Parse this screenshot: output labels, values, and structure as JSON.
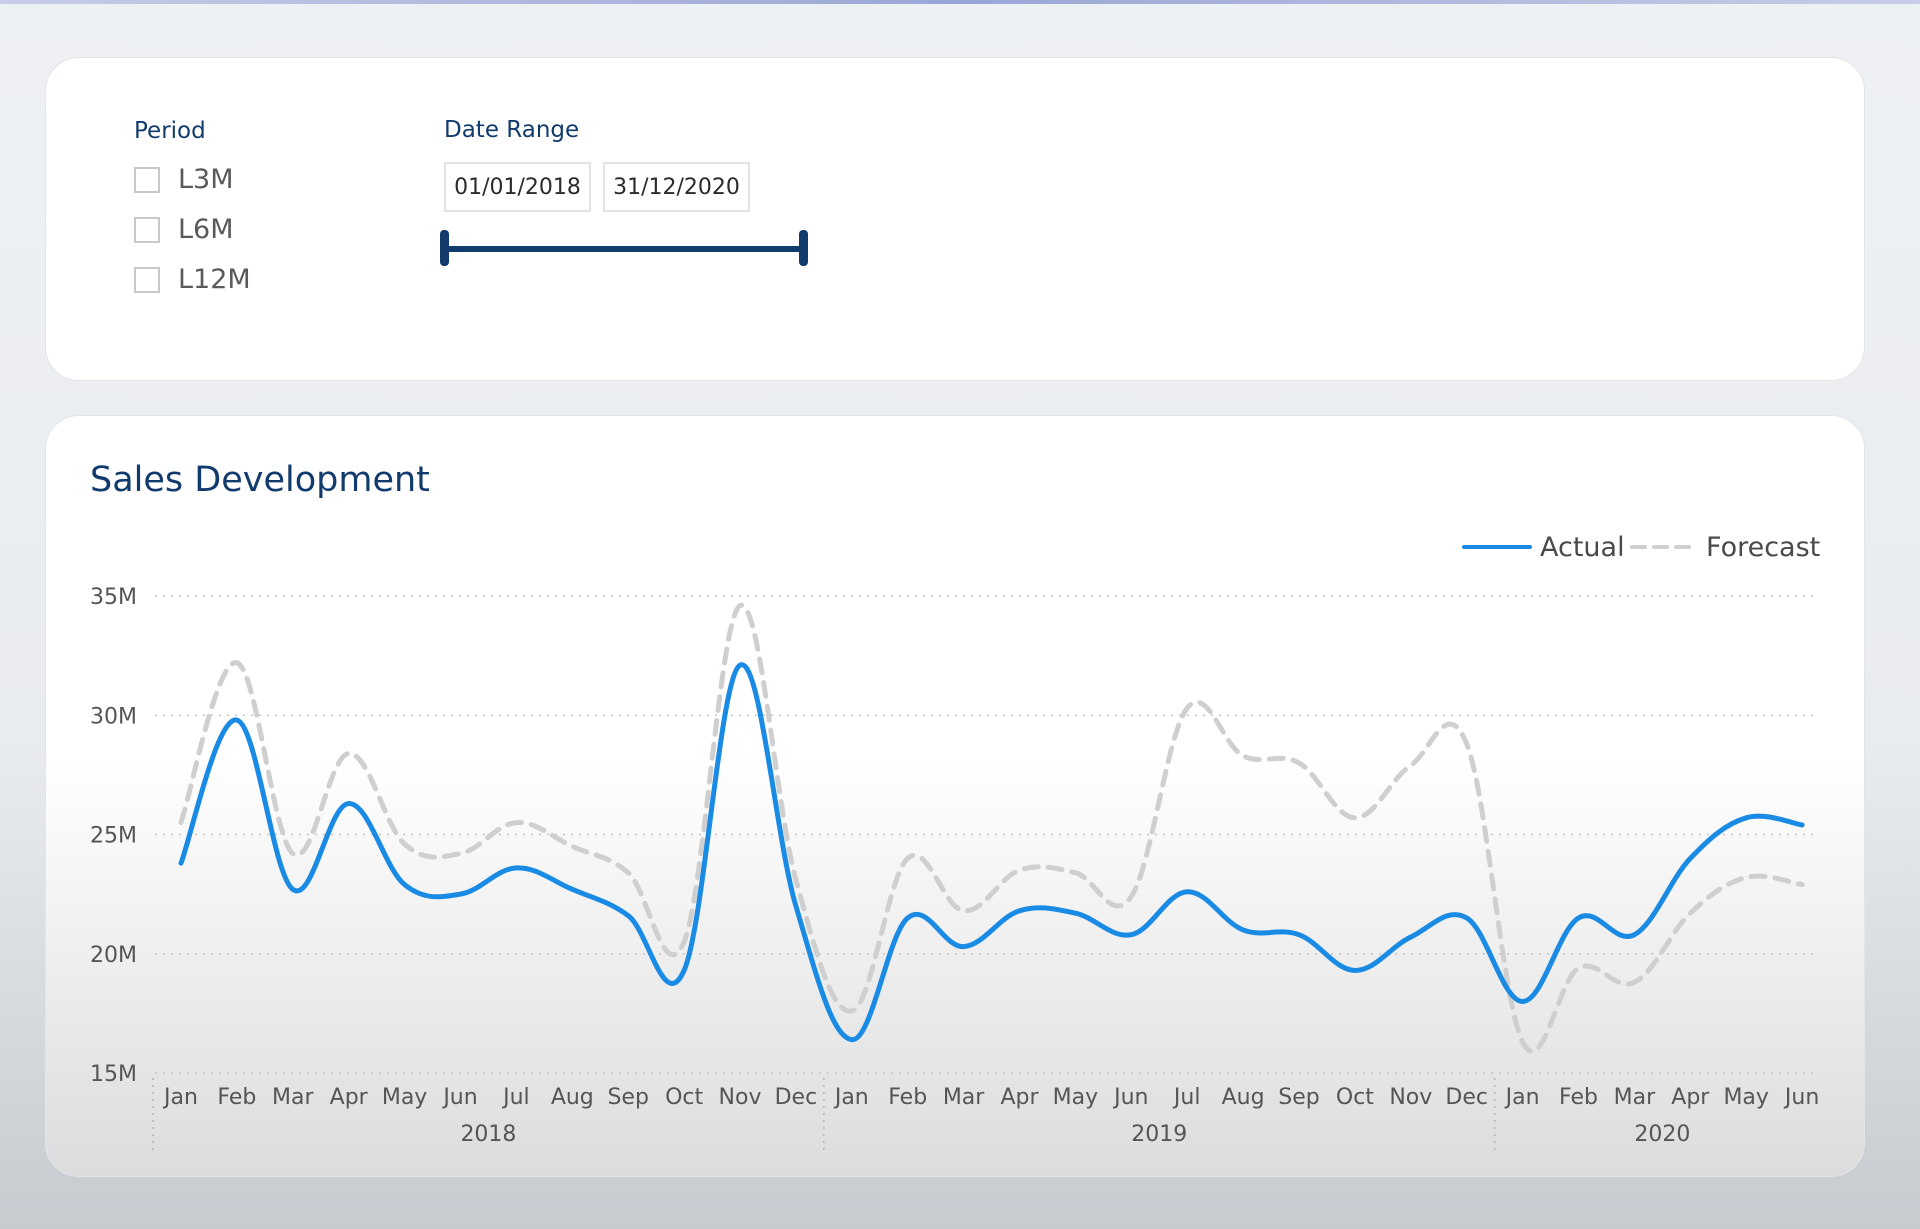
{
  "filters": {
    "period": {
      "title": "Period",
      "options": [
        {
          "label": "L3M",
          "checked": false
        },
        {
          "label": "L6M",
          "checked": false
        },
        {
          "label": "L12M",
          "checked": false
        }
      ]
    },
    "date_range": {
      "title": "Date Range",
      "start": "01/01/2018",
      "end": "31/12/2020"
    }
  },
  "colors": {
    "actual": "#1a8be5",
    "forecast": "#cfcfcf",
    "title": "#123b6d"
  },
  "chart_data": {
    "type": "line",
    "title": "Sales Development",
    "xlabel": "",
    "ylabel": "",
    "ylim": [
      15000000,
      35000000
    ],
    "yticks": [
      15000000,
      20000000,
      25000000,
      30000000,
      35000000
    ],
    "ytick_labels": [
      "15M",
      "20M",
      "25M",
      "30M",
      "35M"
    ],
    "grid": true,
    "legend_position": "top-right",
    "categories": [
      "Jan",
      "Feb",
      "Mar",
      "Apr",
      "May",
      "Jun",
      "Jul",
      "Aug",
      "Sep",
      "Oct",
      "Nov",
      "Dec",
      "Jan",
      "Feb",
      "Mar",
      "Apr",
      "May",
      "Jun",
      "Jul",
      "Aug",
      "Sep",
      "Oct",
      "Nov",
      "Dec",
      "Jan",
      "Feb",
      "Mar",
      "Apr",
      "May",
      "Jun"
    ],
    "years": [
      {
        "label": "2018",
        "months": 12
      },
      {
        "label": "2019",
        "months": 12
      },
      {
        "label": "2020",
        "months": 6
      }
    ],
    "series": [
      {
        "name": "Actual",
        "style": "solid",
        "values": [
          23800000,
          29800000,
          22700000,
          26300000,
          22900000,
          22500000,
          23600000,
          22700000,
          21600000,
          19300000,
          32100000,
          22000000,
          16400000,
          21500000,
          20300000,
          21800000,
          21700000,
          20800000,
          22600000,
          21000000,
          20800000,
          19300000,
          20700000,
          21500000,
          18000000,
          21500000,
          20800000,
          24000000,
          25700000,
          25400000
        ]
      },
      {
        "name": "Forecast",
        "style": "dashed",
        "values": [
          25500000,
          32200000,
          24200000,
          28400000,
          24600000,
          24200000,
          25500000,
          24500000,
          23400000,
          20500000,
          34600000,
          23100000,
          17600000,
          24000000,
          21800000,
          23500000,
          23400000,
          22400000,
          30300000,
          28300000,
          28000000,
          25700000,
          27900000,
          28800000,
          16300000,
          19400000,
          18800000,
          21700000,
          23200000,
          22900000
        ]
      }
    ]
  }
}
